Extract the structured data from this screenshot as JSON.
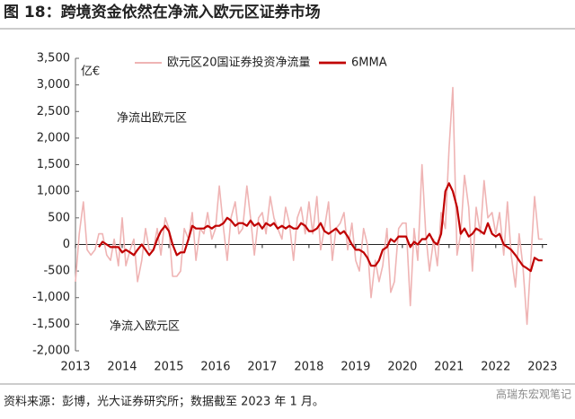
{
  "title": "图 18：跨境资金依然在净流入欧元区证券市场",
  "source": "资料来源：彭博，光大证券研究所；数据截至 2023 年 1 月。",
  "watermark": "高瑞东宏观笔记",
  "chart_data": {
    "type": "line",
    "y_unit": "亿€",
    "annotations": [
      "净流出欧元区",
      "净流入欧元区"
    ],
    "x": [
      2013.0,
      2013.08,
      2013.17,
      2013.25,
      2013.33,
      2013.42,
      2013.5,
      2013.58,
      2013.67,
      2013.75,
      2013.83,
      2013.92,
      2014.0,
      2014.08,
      2014.17,
      2014.25,
      2014.33,
      2014.42,
      2014.5,
      2014.58,
      2014.67,
      2014.75,
      2014.83,
      2014.92,
      2015.0,
      2015.08,
      2015.17,
      2015.25,
      2015.33,
      2015.42,
      2015.5,
      2015.58,
      2015.67,
      2015.75,
      2015.83,
      2015.92,
      2016.0,
      2016.08,
      2016.17,
      2016.25,
      2016.33,
      2016.42,
      2016.5,
      2016.58,
      2016.67,
      2016.75,
      2016.83,
      2016.92,
      2017.0,
      2017.08,
      2017.17,
      2017.25,
      2017.33,
      2017.42,
      2017.5,
      2017.58,
      2017.67,
      2017.75,
      2017.83,
      2017.92,
      2018.0,
      2018.08,
      2018.17,
      2018.25,
      2018.33,
      2018.42,
      2018.5,
      2018.58,
      2018.67,
      2018.75,
      2018.83,
      2018.92,
      2019.0,
      2019.08,
      2019.17,
      2019.25,
      2019.33,
      2019.42,
      2019.5,
      2019.58,
      2019.67,
      2019.75,
      2019.83,
      2019.92,
      2020.0,
      2020.08,
      2020.17,
      2020.25,
      2020.33,
      2020.42,
      2020.5,
      2020.58,
      2020.67,
      2020.75,
      2020.83,
      2020.92,
      2021.0,
      2021.08,
      2021.17,
      2021.25,
      2021.33,
      2021.42,
      2021.5,
      2021.58,
      2021.67,
      2021.75,
      2021.83,
      2021.92,
      2022.0,
      2022.08,
      2022.17,
      2022.25,
      2022.33,
      2022.42,
      2022.5,
      2022.58,
      2022.67,
      2022.75,
      2022.83,
      2022.92,
      2023.0
    ],
    "series": [
      {
        "name": "欧元区20国证券投资净流量",
        "color": "#efb4b4",
        "width": 1.6,
        "values": [
          -700,
          200,
          800,
          -100,
          -200,
          -100,
          200,
          200,
          -200,
          -300,
          100,
          -400,
          500,
          -400,
          -100,
          100,
          -700,
          -300,
          300,
          -100,
          -100,
          300,
          -200,
          500,
          300,
          -600,
          -600,
          -500,
          300,
          100,
          600,
          -300,
          300,
          200,
          600,
          100,
          300,
          1100,
          300,
          -300,
          500,
          800,
          200,
          300,
          1100,
          500,
          -200,
          500,
          600,
          200,
          900,
          500,
          300,
          100,
          700,
          400,
          -300,
          500,
          700,
          200,
          800,
          200,
          900,
          -100,
          300,
          800,
          -300,
          300,
          400,
          600,
          -100,
          400,
          -300,
          -500,
          300,
          0,
          -1000,
          -300,
          -700,
          -400,
          300,
          -900,
          -700,
          300,
          400,
          400,
          -1150,
          300,
          -300,
          1500,
          200,
          -500,
          100,
          -400,
          600,
          300,
          1800,
          2950,
          -200,
          200,
          1300,
          700,
          -500,
          700,
          200,
          1200,
          500,
          600,
          200,
          600,
          -200,
          800,
          -200,
          -800,
          200,
          -400,
          -1500,
          -300,
          900,
          100,
          100
        ]
      },
      {
        "name": "6MMA",
        "color": "#c00000",
        "width": 2.2,
        "values": [
          null,
          null,
          null,
          null,
          null,
          null,
          -50,
          50,
          0,
          -50,
          -50,
          -50,
          -150,
          -100,
          -150,
          -200,
          -100,
          0,
          -100,
          -200,
          -100,
          100,
          250,
          350,
          250,
          0,
          -200,
          -150,
          -150,
          100,
          350,
          300,
          300,
          300,
          350,
          300,
          350,
          350,
          400,
          500,
          450,
          350,
          400,
          400,
          350,
          450,
          350,
          400,
          300,
          400,
          350,
          400,
          300,
          350,
          300,
          350,
          300,
          300,
          400,
          350,
          250,
          250,
          300,
          400,
          250,
          200,
          250,
          300,
          200,
          250,
          150,
          0,
          -100,
          -100,
          -150,
          -250,
          -400,
          -400,
          -300,
          -100,
          -50,
          100,
          50,
          150,
          150,
          150,
          -50,
          50,
          0,
          100,
          100,
          200,
          50,
          0,
          200,
          1000,
          1150,
          1000,
          700,
          200,
          300,
          150,
          200,
          300,
          250,
          200,
          400,
          200,
          150,
          200,
          0,
          -50,
          -100,
          -200,
          -300,
          -400,
          -450,
          -500,
          -250,
          -300,
          -300
        ]
      }
    ],
    "xlim": [
      2013,
      2023.1
    ],
    "xticks": [
      2013,
      2014,
      2015,
      2016,
      2017,
      2018,
      2019,
      2020,
      2021,
      2022,
      2023
    ],
    "ylim": [
      -2000,
      3500
    ],
    "yticks": [
      {
        "value": 3500,
        "label": "3,500"
      },
      {
        "value": 3000,
        "label": "3,000"
      },
      {
        "value": 2500,
        "label": "2,500"
      },
      {
        "value": 2000,
        "label": "2,000"
      },
      {
        "value": 1500,
        "label": "1,500"
      },
      {
        "value": 1000,
        "label": "1,000"
      },
      500,
      0,
      -500,
      {
        "value": -1000,
        "label": "-1,000"
      },
      {
        "value": -1500,
        "label": "-1,500"
      },
      {
        "value": -2000,
        "label": "-2,000"
      }
    ],
    "legend": "top"
  }
}
